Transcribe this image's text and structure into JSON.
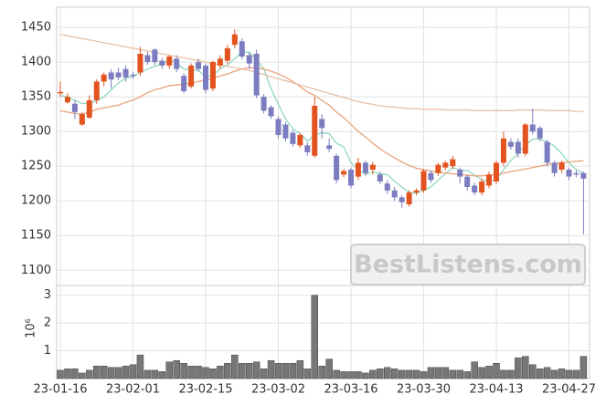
{
  "chart_data": [
    {
      "type": "candlestick",
      "open": [
        1355,
        1342,
        1340,
        1310,
        1320,
        1345,
        1372,
        1385,
        1385,
        1390,
        1382,
        1385,
        1410,
        1418,
        1402,
        1395,
        1405,
        1380,
        1365,
        1400,
        1395,
        1362,
        1395,
        1402,
        1425,
        1430,
        1410,
        1412,
        1350,
        1335,
        1318,
        1310,
        1298,
        1280,
        1280,
        1265,
        1318,
        1280,
        1265,
        1238,
        1245,
        1235,
        1255,
        1245,
        1238,
        1225,
        1215,
        1205,
        1195,
        1212,
        1215,
        1240,
        1240,
        1248,
        1250,
        1245,
        1235,
        1222,
        1212,
        1222,
        1228,
        1255,
        1285,
        1285,
        1268,
        1310,
        1305,
        1285,
        1255,
        1245,
        1245,
        1240,
        1240
      ],
      "high": [
        1372,
        1355,
        1345,
        1328,
        1352,
        1375,
        1385,
        1390,
        1392,
        1395,
        1386,
        1422,
        1415,
        1420,
        1406,
        1410,
        1410,
        1384,
        1398,
        1405,
        1398,
        1402,
        1410,
        1425,
        1447,
        1434,
        1414,
        1418,
        1354,
        1338,
        1322,
        1314,
        1302,
        1298,
        1284,
        1350,
        1325,
        1290,
        1268,
        1246,
        1248,
        1262,
        1258,
        1256,
        1242,
        1230,
        1220,
        1208,
        1215,
        1218,
        1246,
        1244,
        1255,
        1258,
        1265,
        1248,
        1238,
        1226,
        1232,
        1242,
        1258,
        1300,
        1290,
        1290,
        1312,
        1333,
        1308,
        1288,
        1258,
        1258,
        1248,
        1244,
        1242
      ],
      "low": [
        1350,
        1340,
        1318,
        1308,
        1318,
        1340,
        1365,
        1362,
        1374,
        1372,
        1376,
        1380,
        1396,
        1396,
        1390,
        1390,
        1386,
        1355,
        1362,
        1386,
        1355,
        1358,
        1390,
        1398,
        1420,
        1404,
        1390,
        1348,
        1326,
        1318,
        1290,
        1286,
        1278,
        1276,
        1265,
        1262,
        1290,
        1270,
        1225,
        1234,
        1218,
        1230,
        1236,
        1238,
        1224,
        1210,
        1200,
        1190,
        1192,
        1208,
        1212,
        1226,
        1236,
        1244,
        1246,
        1225,
        1215,
        1208,
        1208,
        1218,
        1224,
        1250,
        1274,
        1262,
        1264,
        1296,
        1286,
        1250,
        1235,
        1240,
        1230,
        1234,
        1152
      ],
      "close": [
        1357,
        1350,
        1328,
        1325,
        1345,
        1372,
        1382,
        1375,
        1378,
        1378,
        1380,
        1412,
        1400,
        1400,
        1395,
        1408,
        1390,
        1358,
        1395,
        1390,
        1360,
        1400,
        1405,
        1420,
        1440,
        1408,
        1398,
        1352,
        1330,
        1322,
        1295,
        1290,
        1282,
        1295,
        1270,
        1337,
        1305,
        1275,
        1230,
        1243,
        1222,
        1255,
        1240,
        1252,
        1228,
        1215,
        1205,
        1198,
        1212,
        1215,
        1243,
        1230,
        1252,
        1255,
        1260,
        1235,
        1220,
        1212,
        1228,
        1238,
        1255,
        1290,
        1278,
        1268,
        1310,
        1300,
        1290,
        1255,
        1240,
        1255,
        1235,
        1238,
        1232
      ],
      "up_color": "#e2531f",
      "down_color": "#7c7cc0",
      "series": [
        {
          "color": "#8fd9bd",
          "values": [
            1352,
            1350,
            1345,
            1340,
            1341,
            1344,
            1350,
            1360,
            1370,
            1377,
            1379,
            1385,
            1390,
            1394,
            1397,
            1403,
            1399,
            1390,
            1389,
            1388,
            1379,
            1381,
            1390,
            1396,
            1405,
            1415,
            1414,
            1404,
            1390,
            1362,
            1339,
            1318,
            1304,
            1297,
            1286,
            1295,
            1298,
            1297,
            1283,
            1278,
            1255,
            1245,
            1238,
            1242,
            1239,
            1238,
            1228,
            1220,
            1212,
            1211,
            1215,
            1220,
            1230,
            1239,
            1248,
            1244,
            1244,
            1237,
            1231,
            1227,
            1231,
            1245,
            1258,
            1268,
            1280,
            1289,
            1289,
            1285,
            1279,
            1268,
            1255,
            1245,
            1240
          ]
        },
        {
          "color": "#e9a27c",
          "values": [
            1330,
            1328,
            1326,
            1325,
            1328,
            1332,
            1334,
            1336,
            1338,
            1342,
            1345,
            1350,
            1356,
            1360,
            1363,
            1366,
            1367,
            1368,
            1370,
            1372,
            1374,
            1377,
            1380,
            1383,
            1387,
            1390,
            1392,
            1392,
            1390,
            1387,
            1383,
            1378,
            1372,
            1365,
            1357,
            1352,
            1345,
            1338,
            1328,
            1320,
            1310,
            1300,
            1292,
            1283,
            1275,
            1268,
            1262,
            1256,
            1251,
            1247,
            1245,
            1243,
            1241,
            1240,
            1239,
            1238,
            1237,
            1236,
            1236,
            1237,
            1238,
            1240,
            1242,
            1244,
            1246,
            1248,
            1250,
            1252,
            1254,
            1255,
            1256,
            1257,
            1258
          ]
        },
        {
          "color": "#e8c0a2",
          "values": [
            1440,
            1438,
            1436,
            1434,
            1432,
            1430,
            1428,
            1426,
            1424,
            1422,
            1420,
            1418,
            1416,
            1414,
            1412,
            1410,
            1408,
            1406,
            1404,
            1402,
            1400,
            1398,
            1396,
            1394,
            1392,
            1390,
            1388,
            1385,
            1382,
            1379,
            1376,
            1373,
            1370,
            1367,
            1364,
            1361,
            1358,
            1355,
            1352,
            1349,
            1346,
            1343,
            1341,
            1339,
            1337,
            1336,
            1335,
            1334,
            1333,
            1333,
            1332,
            1332,
            1332,
            1331,
            1331,
            1331,
            1331,
            1330,
            1330,
            1330,
            1330,
            1330,
            1330,
            1331,
            1331,
            1331,
            1331,
            1330,
            1330,
            1330,
            1330,
            1329,
            1329
          ]
        }
      ],
      "ylim": [
        1078,
        1479
      ],
      "yticks": [
        1100,
        1150,
        1200,
        1250,
        1300,
        1350,
        1400,
        1450
      ],
      "grid": true,
      "watermark": "BestListens.com"
    },
    {
      "type": "bar",
      "categories": [
        "23-01-16",
        null,
        null,
        null,
        null,
        null,
        null,
        null,
        null,
        null,
        "23-02-01",
        null,
        null,
        null,
        null,
        null,
        null,
        null,
        null,
        null,
        "23-02-15",
        null,
        null,
        null,
        null,
        null,
        null,
        null,
        null,
        null,
        "23-03-02",
        null,
        null,
        null,
        null,
        null,
        null,
        null,
        null,
        null,
        "23-03-16",
        null,
        null,
        null,
        null,
        null,
        null,
        null,
        null,
        null,
        "23-03-30",
        null,
        null,
        null,
        null,
        null,
        null,
        null,
        null,
        null,
        "23-04-13",
        null,
        null,
        null,
        null,
        null,
        null,
        null,
        null,
        null,
        "23-04-27",
        null,
        null
      ],
      "values": [
        0.3,
        0.35,
        0.35,
        0.2,
        0.3,
        0.45,
        0.45,
        0.4,
        0.4,
        0.45,
        0.5,
        0.85,
        0.3,
        0.3,
        0.25,
        0.6,
        0.65,
        0.55,
        0.45,
        0.45,
        0.4,
        0.35,
        0.45,
        0.55,
        0.85,
        0.55,
        0.55,
        0.6,
        0.35,
        0.65,
        0.55,
        0.55,
        0.55,
        0.65,
        0.35,
        3.0,
        0.45,
        0.7,
        0.3,
        0.25,
        0.25,
        0.25,
        0.2,
        0.3,
        0.35,
        0.4,
        0.35,
        0.3,
        0.3,
        0.3,
        0.25,
        0.4,
        0.4,
        0.4,
        0.3,
        0.3,
        0.25,
        0.6,
        0.4,
        0.45,
        0.55,
        0.3,
        0.3,
        0.75,
        0.8,
        0.5,
        0.35,
        0.4,
        0.3,
        0.35,
        0.3,
        0.3,
        0.8
      ],
      "color": "#777777",
      "ylim": [
        0,
        3.35
      ],
      "yticks": [
        1,
        2,
        3
      ],
      "y_label": "10⁶",
      "grid": true
    }
  ]
}
